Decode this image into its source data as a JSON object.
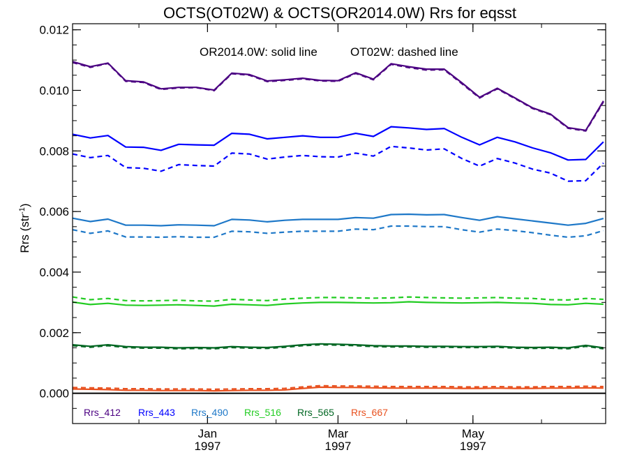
{
  "chart_data": {
    "type": "line",
    "title": "OCTS(OT02W) & OCTS(OR2014.0W)  Rrs for eqsst",
    "ylabel_main": "Rrs (str",
    "ylabel_sup": "-1",
    "ylabel_end": ")",
    "ylim": [
      -0.001,
      0.0122
    ],
    "xlim": [
      "1996-11-01",
      "1997-06-30"
    ],
    "yticks": [
      "0.000",
      "0.002",
      "0.004",
      "0.006",
      "0.008",
      "0.010",
      "0.012"
    ],
    "xticks": [
      {
        "date": "1997-01-01",
        "month": "Jan",
        "year": "1997"
      },
      {
        "date": "1997-03-01",
        "month": "Mar",
        "year": "1997"
      },
      {
        "date": "1997-05-01",
        "month": "May",
        "year": "1997"
      }
    ],
    "annotations": {
      "solid": "OR2014.0W: solid line",
      "dashed": "OT02W: dashed line"
    },
    "grid": false,
    "legend_position": "bottom-left",
    "x": [
      "1996-11-01",
      "1996-11-09",
      "1996-11-17",
      "1996-11-25",
      "1996-12-03",
      "1996-12-11",
      "1996-12-19",
      "1996-12-27",
      "1997-01-04",
      "1997-01-12",
      "1997-01-20",
      "1997-01-28",
      "1997-02-05",
      "1997-02-13",
      "1997-02-21",
      "1997-03-01",
      "1997-03-09",
      "1997-03-17",
      "1997-03-25",
      "1997-04-02",
      "1997-04-10",
      "1997-04-18",
      "1997-04-26",
      "1997-05-04",
      "1997-05-12",
      "1997-05-20",
      "1997-05-28",
      "1997-06-05",
      "1997-06-13",
      "1997-06-21",
      "1997-06-29"
    ],
    "series": [
      {
        "name": "Rrs_412",
        "color": "#4b0082",
        "style": "solid",
        "values": [
          0.01095,
          0.01078,
          0.0109,
          0.01032,
          0.01028,
          0.01005,
          0.0101,
          0.0101,
          0.01001,
          0.01057,
          0.01052,
          0.01031,
          0.01035,
          0.0104,
          0.01033,
          0.01032,
          0.01058,
          0.01037,
          0.01088,
          0.01078,
          0.0107,
          0.0107,
          0.01025,
          0.00977,
          0.01007,
          0.00975,
          0.00942,
          0.00922,
          0.00877,
          0.00868,
          0.00965
        ]
      },
      {
        "name": "Rrs_412",
        "color": "#4b0082",
        "style": "dashed",
        "values": [
          0.01092,
          0.01076,
          0.01089,
          0.0103,
          0.01026,
          0.01003,
          0.01008,
          0.01009,
          0.00999,
          0.01055,
          0.0105,
          0.01029,
          0.01033,
          0.01038,
          0.01031,
          0.0103,
          0.01056,
          0.01035,
          0.01086,
          0.01075,
          0.01067,
          0.01068,
          0.01022,
          0.00975,
          0.01005,
          0.00973,
          0.0094,
          0.0092,
          0.00875,
          0.00866,
          0.00962
        ]
      },
      {
        "name": "Rrs_443",
        "color": "#0000ff",
        "style": "solid",
        "values": [
          0.00855,
          0.00843,
          0.00851,
          0.00813,
          0.00812,
          0.00802,
          0.00822,
          0.0082,
          0.00819,
          0.00858,
          0.00855,
          0.0084,
          0.00845,
          0.0085,
          0.00845,
          0.00845,
          0.00858,
          0.00848,
          0.0088,
          0.00876,
          0.00871,
          0.00874,
          0.00845,
          0.0082,
          0.00845,
          0.0083,
          0.0081,
          0.00794,
          0.0077,
          0.00772,
          0.0083
        ]
      },
      {
        "name": "Rrs_443",
        "color": "#0000ff",
        "style": "dashed",
        "values": [
          0.0079,
          0.00778,
          0.00785,
          0.00745,
          0.00743,
          0.00733,
          0.00755,
          0.00752,
          0.0075,
          0.00793,
          0.0079,
          0.00773,
          0.0078,
          0.00785,
          0.00781,
          0.0078,
          0.00793,
          0.00783,
          0.00815,
          0.0081,
          0.00803,
          0.00807,
          0.00775,
          0.0075,
          0.00775,
          0.0076,
          0.0074,
          0.00727,
          0.007,
          0.00702,
          0.0076
        ]
      },
      {
        "name": "Rrs_490",
        "color": "#1e78c8",
        "style": "solid",
        "values": [
          0.00578,
          0.00567,
          0.00575,
          0.00555,
          0.00555,
          0.00553,
          0.00556,
          0.00555,
          0.00553,
          0.00574,
          0.00572,
          0.00566,
          0.00571,
          0.00574,
          0.00574,
          0.00574,
          0.0058,
          0.00578,
          0.0059,
          0.00591,
          0.00589,
          0.0059,
          0.0058,
          0.00571,
          0.00583,
          0.00576,
          0.00569,
          0.00562,
          0.00555,
          0.00561,
          0.00577
        ]
      },
      {
        "name": "Rrs_490",
        "color": "#1e78c8",
        "style": "dashed",
        "values": [
          0.0054,
          0.00528,
          0.00536,
          0.00516,
          0.00516,
          0.00515,
          0.00517,
          0.00515,
          0.00515,
          0.00535,
          0.00533,
          0.00528,
          0.00532,
          0.00535,
          0.00535,
          0.00535,
          0.00542,
          0.0054,
          0.00552,
          0.00552,
          0.0055,
          0.0055,
          0.0054,
          0.00532,
          0.00542,
          0.00537,
          0.0053,
          0.00522,
          0.00515,
          0.0052,
          0.00537
        ]
      },
      {
        "name": "Rrs_516",
        "color": "#22cc22",
        "style": "solid",
        "values": [
          0.00301,
          0.00293,
          0.00297,
          0.00291,
          0.0029,
          0.00291,
          0.00292,
          0.0029,
          0.00288,
          0.00294,
          0.00292,
          0.0029,
          0.00295,
          0.00298,
          0.003,
          0.003,
          0.00299,
          0.00298,
          0.00299,
          0.00302,
          0.003,
          0.00299,
          0.00298,
          0.00299,
          0.003,
          0.00298,
          0.00297,
          0.00293,
          0.00292,
          0.00297,
          0.00294
        ]
      },
      {
        "name": "Rrs_516",
        "color": "#22cc22",
        "style": "dashed",
        "values": [
          0.00318,
          0.00309,
          0.00313,
          0.00306,
          0.00305,
          0.00306,
          0.00307,
          0.00305,
          0.00304,
          0.0031,
          0.00308,
          0.00306,
          0.00311,
          0.00314,
          0.00316,
          0.00316,
          0.00315,
          0.00314,
          0.00315,
          0.00318,
          0.00316,
          0.00315,
          0.00314,
          0.00315,
          0.00316,
          0.00314,
          0.00313,
          0.00309,
          0.00308,
          0.00313,
          0.0031
        ]
      },
      {
        "name": "Rrs_565",
        "color": "#006622",
        "style": "solid",
        "values": [
          0.0016,
          0.00155,
          0.0016,
          0.00154,
          0.00152,
          0.00152,
          0.0015,
          0.00151,
          0.0015,
          0.00154,
          0.00152,
          0.00151,
          0.00155,
          0.0016,
          0.00163,
          0.00162,
          0.0016,
          0.00157,
          0.00156,
          0.00156,
          0.00155,
          0.00155,
          0.00154,
          0.00154,
          0.00155,
          0.00152,
          0.00151,
          0.00152,
          0.0015,
          0.00158,
          0.0015
        ]
      },
      {
        "name": "Rrs_565",
        "color": "#006622",
        "style": "dashed",
        "values": [
          0.00157,
          0.00152,
          0.00157,
          0.00151,
          0.00149,
          0.00149,
          0.00147,
          0.00148,
          0.00147,
          0.00151,
          0.00149,
          0.00148,
          0.00152,
          0.00157,
          0.0016,
          0.00159,
          0.00157,
          0.00154,
          0.00153,
          0.00153,
          0.00152,
          0.00152,
          0.00151,
          0.00151,
          0.00152,
          0.00149,
          0.00148,
          0.00149,
          0.00147,
          0.00155,
          0.00147
        ]
      },
      {
        "name": "Rrs_667",
        "color": "#e8501e",
        "style": "solid",
        "values": [
          0.00014,
          0.00013,
          0.00012,
          0.0001,
          0.0001,
          9e-05,
          9e-05,
          9e-05,
          8e-05,
          9e-05,
          0.0001,
          0.0001,
          0.00011,
          0.00016,
          0.0002,
          0.00019,
          0.00019,
          0.00018,
          0.00017,
          0.00017,
          0.00017,
          0.00017,
          0.00016,
          0.00016,
          0.00017,
          0.00016,
          0.00016,
          0.00017,
          0.00017,
          0.00018,
          0.00017
        ]
      },
      {
        "name": "Rrs_667",
        "color": "#e8501e",
        "style": "dashed",
        "values": [
          0.00019,
          0.00018,
          0.00017,
          0.00015,
          0.00015,
          0.00014,
          0.00014,
          0.00014,
          0.00013,
          0.00014,
          0.00015,
          0.00015,
          0.00016,
          0.00021,
          0.00025,
          0.00024,
          0.00024,
          0.00023,
          0.00022,
          0.00022,
          0.00022,
          0.00022,
          0.00021,
          0.00021,
          0.00022,
          0.00021,
          0.00021,
          0.00022,
          0.00022,
          0.00023,
          0.00022
        ]
      }
    ],
    "legend": [
      {
        "label": "Rrs_412",
        "color": "#4b0082"
      },
      {
        "label": "Rrs_443",
        "color": "#0000ff"
      },
      {
        "label": "Rrs_490",
        "color": "#1e78c8"
      },
      {
        "label": "Rrs_516",
        "color": "#22cc22"
      },
      {
        "label": "Rrs_565",
        "color": "#006622"
      },
      {
        "label": "Rrs_667",
        "color": "#e8501e"
      }
    ],
    "zero_line": 0
  }
}
